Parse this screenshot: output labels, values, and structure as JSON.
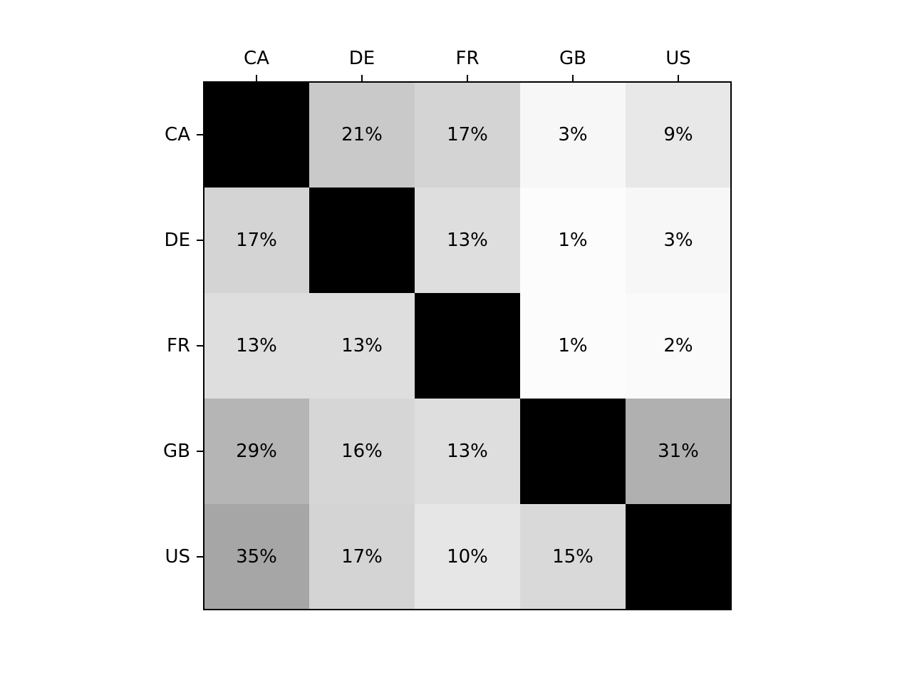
{
  "chart_data": {
    "type": "heatmap",
    "title": "",
    "xlabel": "",
    "ylabel": "",
    "x_categories": [
      "CA",
      "DE",
      "FR",
      "GB",
      "US"
    ],
    "y_categories": [
      "CA",
      "DE",
      "FR",
      "GB",
      "US"
    ],
    "x_axis_position": "top",
    "colormap": "greys",
    "color_range": [
      0,
      100
    ],
    "diagonal": "black, unlabeled",
    "grid": false,
    "legend": "none",
    "values": [
      [
        null,
        21,
        17,
        3,
        9
      ],
      [
        17,
        null,
        13,
        1,
        3
      ],
      [
        13,
        13,
        null,
        1,
        2
      ],
      [
        29,
        16,
        13,
        null,
        31
      ],
      [
        35,
        17,
        10,
        15,
        null
      ]
    ],
    "labels": [
      [
        "",
        "21%",
        "17%",
        "3%",
        "9%"
      ],
      [
        "17%",
        "",
        "13%",
        "1%",
        "3%"
      ],
      [
        "13%",
        "13%",
        "",
        "1%",
        "2%"
      ],
      [
        "29%",
        "16%",
        "13%",
        "",
        "31%"
      ],
      [
        "35%",
        "17%",
        "10%",
        "15%",
        ""
      ]
    ]
  }
}
